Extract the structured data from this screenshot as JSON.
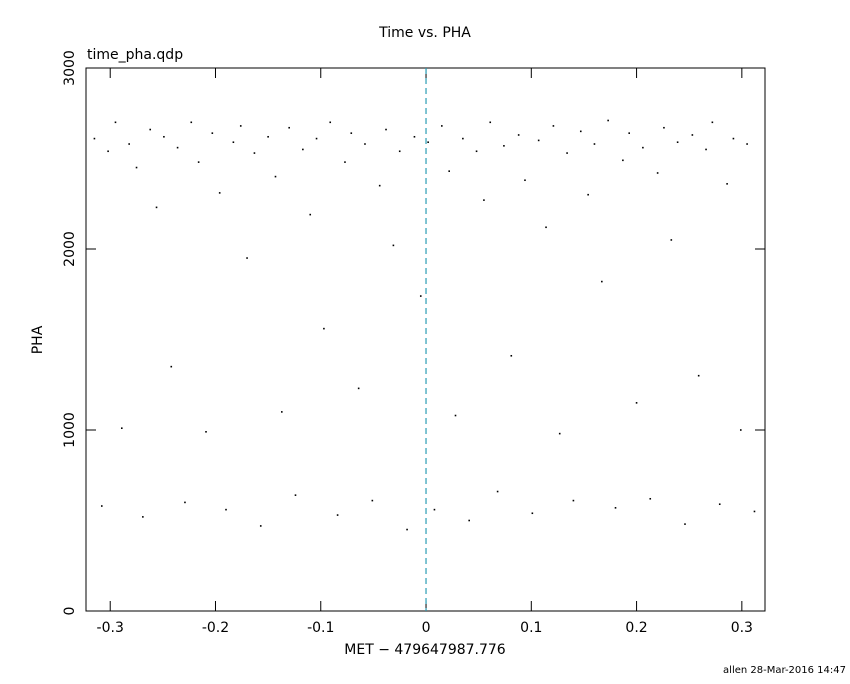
{
  "chart_data": {
    "type": "scatter",
    "title": "Time vs. PHA",
    "subtitle": "time_pha.qdp",
    "x_label": "MET − 479647987.776",
    "y_label": "PHA",
    "footer": "allen 28-Mar-2016 14:47",
    "color": "#000000",
    "reference_line": {
      "x": 0,
      "color": "#2a9db5"
    },
    "xlim": [
      -0.323,
      0.322
    ],
    "ylim": [
      0,
      3000
    ],
    "xticks": [
      -0.3,
      -0.2,
      -0.1,
      0,
      0.1,
      0.2,
      0.3
    ],
    "yticks": [
      0,
      1000,
      2000,
      3000
    ],
    "series": [
      {
        "name": "PHA",
        "color": "#000000",
        "x": [
          -0.315,
          -0.308,
          -0.302,
          -0.295,
          -0.289,
          -0.282,
          -0.275,
          -0.269,
          -0.262,
          -0.256,
          -0.249,
          -0.242,
          -0.236,
          -0.229,
          -0.223,
          -0.216,
          -0.209,
          -0.203,
          -0.196,
          -0.19,
          -0.183,
          -0.176,
          -0.17,
          -0.163,
          -0.157,
          -0.15,
          -0.143,
          -0.137,
          -0.13,
          -0.124,
          -0.117,
          -0.11,
          -0.104,
          -0.097,
          -0.091,
          -0.084,
          -0.077,
          -0.071,
          -0.064,
          -0.058,
          -0.051,
          -0.044,
          -0.038,
          -0.031,
          -0.025,
          -0.018,
          -0.011,
          -0.005,
          0.002,
          0.008,
          0.015,
          0.022,
          0.028,
          0.035,
          0.041,
          0.048,
          0.055,
          0.061,
          0.068,
          0.074,
          0.081,
          0.088,
          0.094,
          0.101,
          0.107,
          0.114,
          0.121,
          0.127,
          0.134,
          0.14,
          0.147,
          0.154,
          0.16,
          0.167,
          0.173,
          0.18,
          0.187,
          0.193,
          0.2,
          0.206,
          0.213,
          0.22,
          0.226,
          0.233,
          0.239,
          0.246,
          0.253,
          0.259,
          0.266,
          0.272,
          0.279,
          0.286,
          0.292,
          0.299,
          0.305,
          0.312
        ],
        "values": [
          2610,
          580,
          2540,
          2700,
          1010,
          2580,
          2450,
          520,
          2660,
          2230,
          2620,
          1350,
          2560,
          600,
          2700,
          2480,
          990,
          2640,
          2310,
          560,
          2590,
          2680,
          1950,
          2530,
          470,
          2620,
          2400,
          1100,
          2670,
          640,
          2550,
          2190,
          2610,
          1560,
          2700,
          530,
          2480,
          2640,
          1230,
          2580,
          610,
          2350,
          2660,
          2020,
          2540,
          450,
          2620,
          1740,
          2590,
          560,
          2680,
          2430,
          1080,
          2610,
          500,
          2540,
          2270,
          2700,
          660,
          2570,
          1410,
          2630,
          2380,
          540,
          2600,
          2120,
          2680,
          980,
          2530,
          610,
          2650,
          2300,
          2580,
          1820,
          2710,
          570,
          2490,
          2640,
          1150,
          2560,
          620,
          2420,
          2670,
          2050,
          2590,
          480,
          2630,
          1300,
          2550,
          2700,
          590,
          2360,
          2610,
          1000,
          2580,
          550
        ]
      }
    ]
  }
}
